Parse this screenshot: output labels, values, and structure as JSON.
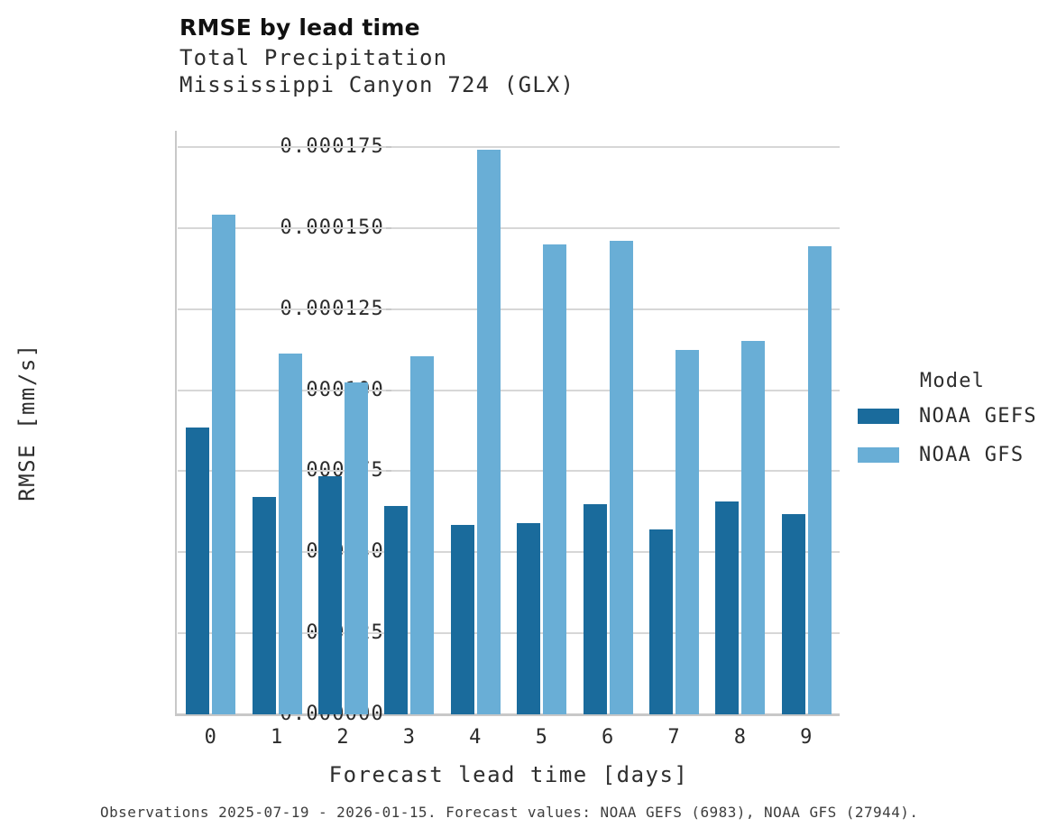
{
  "header": {
    "title": "RMSE by lead time",
    "subtitle_line1": "Total Precipitation",
    "subtitle_line2": "Mississippi Canyon 724 (GLX)"
  },
  "colors": {
    "gefs_dark_blue": "#1a6b9c",
    "gfs_light_blue": "#69aed6",
    "gridline_gray": "#d7d7d7",
    "spine_gray": "#c8c8c8"
  },
  "chart_data": {
    "type": "bar",
    "title": "RMSE by lead time",
    "subtitle": [
      "Total Precipitation",
      "Mississippi Canyon 724 (GLX)"
    ],
    "categories": [
      "0",
      "1",
      "2",
      "3",
      "4",
      "5",
      "6",
      "7",
      "8",
      "9"
    ],
    "series": [
      {
        "name": "NOAA GEFS",
        "color": "#1a6b9c",
        "values": [
          8.86e-05,
          6.7e-05,
          7.34e-05,
          6.42e-05,
          5.85e-05,
          5.89e-05,
          6.47e-05,
          5.7e-05,
          6.57e-05,
          6.18e-05
        ]
      },
      {
        "name": "NOAA GFS",
        "color": "#69aed6",
        "values": [
          0.0001542,
          0.0001113,
          0.0001023,
          0.0001104,
          0.0001741,
          0.000145,
          0.0001461,
          0.0001125,
          0.0001153,
          0.0001445
        ]
      }
    ],
    "xlabel": "Forecast lead time [days]",
    "ylabel": "RMSE [mm/s]",
    "ylim": [
      0,
      0.00018
    ],
    "yticks": [
      0,
      2.5e-05,
      5e-05,
      7.5e-05,
      0.0001,
      0.000125,
      0.00015,
      0.000175
    ],
    "ytick_labels": [
      "0.000000",
      "0.000025",
      "0.000050",
      "0.000075",
      "0.000100",
      "0.000125",
      "0.000150",
      "0.000175"
    ],
    "grid": "horizontal",
    "legend_position": "center-right"
  },
  "legend": {
    "title": "Model",
    "entries": [
      {
        "label": "NOAA GEFS",
        "color": "#1a6b9c"
      },
      {
        "label": "NOAA GFS",
        "color": "#69aed6"
      }
    ]
  },
  "caption": "Observations 2025-07-19 - 2026-01-15. Forecast values: NOAA GEFS (6983), NOAA GFS (27944)."
}
